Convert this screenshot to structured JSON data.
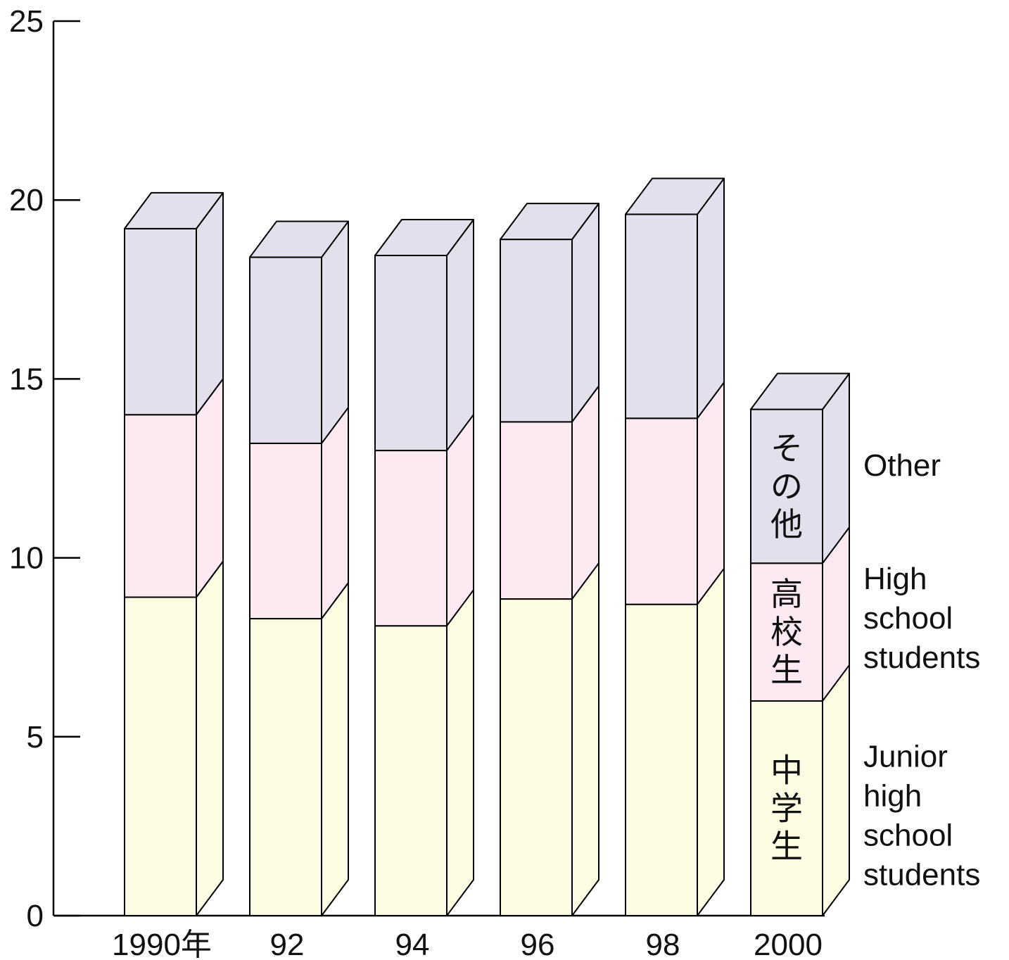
{
  "chart_data": {
    "type": "bar",
    "stacked": true,
    "three_d": true,
    "categories": [
      "1990年",
      "92",
      "94",
      "96",
      "98",
      "2000"
    ],
    "series": [
      {
        "name": "Junior high school students",
        "name_jp": "中学生",
        "values": [
          8.9,
          8.3,
          8.1,
          8.85,
          8.7,
          6.0
        ]
      },
      {
        "name": "High school students",
        "name_jp": "高校生",
        "values": [
          5.1,
          4.9,
          4.9,
          4.95,
          5.2,
          3.85
        ]
      },
      {
        "name": "Other",
        "name_jp": "その他",
        "values": [
          5.2,
          5.2,
          5.45,
          5.1,
          5.7,
          4.3
        ]
      }
    ],
    "yticks": [
      0,
      5,
      10,
      15,
      20,
      25
    ],
    "ylim": [
      0,
      25
    ],
    "colors": [
      "#fdfce2",
      "#fde9f1",
      "#e4dfec"
    ],
    "legend": "right",
    "grid": false
  }
}
